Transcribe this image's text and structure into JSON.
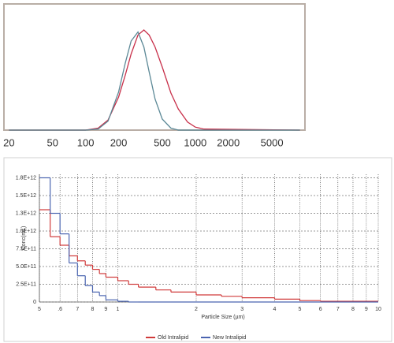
{
  "chart_data": [
    {
      "type": "line",
      "x": [
        20,
        100,
        130,
        160,
        200,
        230,
        260,
        300,
        340,
        380,
        430,
        500,
        600,
        700,
        850,
        1000,
        1200,
        9000
      ],
      "series": [
        {
          "color": "#c8304a",
          "values": [
            0,
            0,
            2,
            10,
            33,
            55,
            76,
            95,
            100,
            95,
            83,
            63,
            37,
            21,
            8,
            3,
            1,
            0
          ]
        },
        {
          "color": "#5b8896",
          "values": [
            0,
            0,
            1,
            9,
            38,
            67,
            89,
            98,
            83,
            58,
            31,
            11,
            2,
            0,
            0,
            0,
            0,
            0
          ]
        }
      ],
      "xscale": "log",
      "xlim": [
        18,
        10000
      ],
      "xticks": [
        20,
        50,
        100,
        200,
        500,
        1000,
        2000,
        5000
      ],
      "ylim": [
        0,
        126
      ]
    },
    {
      "type": "step-histogram",
      "xlabel": "Particle Size (µm)",
      "ylabel": "Conc(mL)",
      "bins": [
        0.5,
        0.55,
        0.6,
        0.65,
        0.7,
        0.75,
        0.8,
        0.85,
        0.9,
        1.0,
        1.1,
        1.2,
        1.4,
        1.6,
        2.0,
        2.5,
        3.0,
        4.0,
        5.0,
        6.0,
        10
      ],
      "series": [
        {
          "name": "Old Intralipid",
          "color": "#d03a3a",
          "values": [
            1300000000000.0,
            920000000000.0,
            800000000000.0,
            650000000000.0,
            580000000000.0,
            520000000000.0,
            460000000000.0,
            400000000000.0,
            350000000000.0,
            300000000000.0,
            250000000000.0,
            210000000000.0,
            170000000000.0,
            140000000000.0,
            100000000000.0,
            80000000000.0,
            60000000000.0,
            40000000000.0,
            20000000000.0,
            10000000000.0
          ]
        },
        {
          "name": "New Intralipid",
          "color": "#4a64b0",
          "values": [
            1750000000000.0,
            1250000000000.0,
            960000000000.0,
            550000000000.0,
            370000000000.0,
            230000000000.0,
            140000000000.0,
            90000000000.0,
            30000000000.0,
            10000000000.0,
            0,
            0,
            0,
            0,
            0,
            0,
            0,
            0,
            0,
            0
          ]
        }
      ],
      "xscale": "log",
      "xlim": [
        0.5,
        10
      ],
      "xticks": [
        {
          "value": 0.5,
          "label": "5"
        },
        {
          "value": 0.6,
          "label": ".6"
        },
        {
          "value": 0.7,
          "label": "7"
        },
        {
          "value": 0.8,
          "label": "8"
        },
        {
          "value": 0.9,
          "label": "9"
        },
        1,
        2,
        3,
        4,
        5,
        6,
        7,
        8,
        9,
        10
      ],
      "ylim": [
        0,
        1800000000000.0
      ],
      "yticks": [
        0,
        {
          "value": 250000000000.0,
          "label": "2.5E+11"
        },
        {
          "value": 500000000000.0,
          "label": "5.0E+11"
        },
        {
          "value": 750000000000.0,
          "label": "7.5E+11"
        },
        {
          "value": 1000000000000.0,
          "label": "1.0E+12"
        },
        {
          "value": 1250000000000.0,
          "label": "1.3E+12"
        },
        {
          "value": 1500000000000.0,
          "label": "1.5E+12"
        },
        {
          "value": 1750000000000.0,
          "label": "1.8E+12"
        }
      ],
      "grid": true,
      "legend": "bottom"
    }
  ]
}
